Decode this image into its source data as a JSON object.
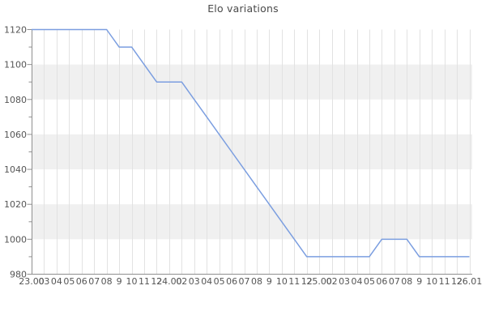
{
  "colors": {
    "line": "#7b9ee0",
    "band": "#f0f0f0",
    "gridline": "#e2e2e2",
    "axis": "#8f8f8f",
    "tick_text": "#555555",
    "title_text": "#4a4a4a"
  },
  "chart_data": {
    "type": "line",
    "title": "Elo variations",
    "xlabel": "",
    "ylabel": "",
    "ylim": [
      980,
      1120
    ],
    "y_ticks": [
      980,
      1000,
      1020,
      1040,
      1060,
      1080,
      1100,
      1120
    ],
    "y_minor_tick_step": 10,
    "grid": true,
    "legend_position": "none",
    "gray_bands": [
      [
        1100,
        1080
      ],
      [
        1060,
        1040
      ],
      [
        1020,
        1000
      ]
    ],
    "x_tick_labels": [
      "23.00",
      "03",
      "04",
      "05",
      "06",
      "07",
      "08",
      "9",
      "10",
      "11",
      "12",
      "24.00",
      "02",
      "03",
      "04",
      "05",
      "06",
      "07",
      "08",
      "9",
      "10",
      "11",
      "12",
      "25.00",
      "02",
      "03",
      "04",
      "05",
      "06",
      "07",
      "08",
      "9",
      "10",
      "11",
      "12",
      "26.01"
    ],
    "series": [
      {
        "name": "Elo",
        "values": [
          1120,
          1120,
          1120,
          1120,
          1120,
          1120,
          1120,
          1110,
          1110,
          1100,
          1090,
          1090,
          1090,
          1080,
          1070,
          1060,
          1050,
          1040,
          1030,
          1020,
          1010,
          1000,
          990,
          990,
          990,
          990,
          990,
          990,
          1000,
          1000,
          1000,
          990,
          990,
          990,
          990,
          990
        ]
      }
    ]
  }
}
